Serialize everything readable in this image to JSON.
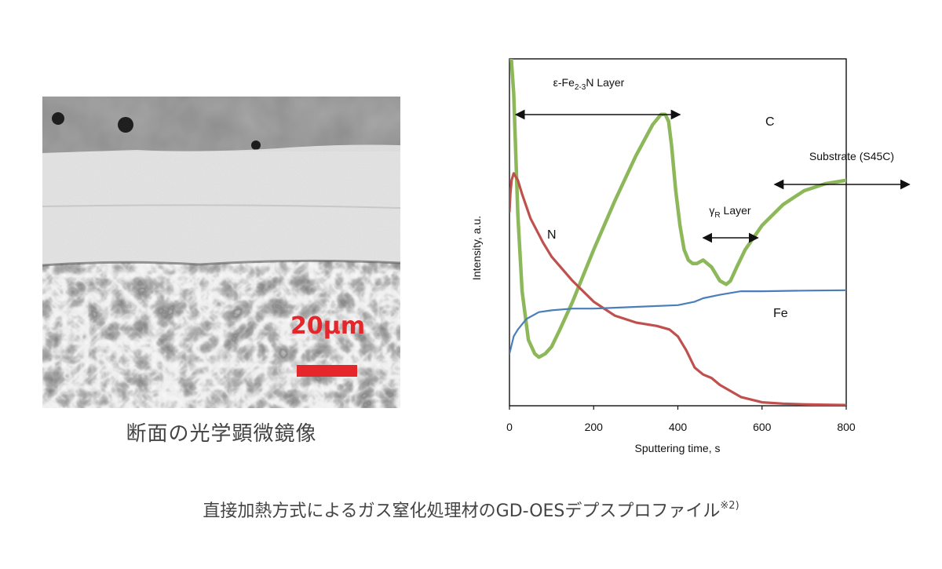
{
  "micrograph": {
    "scale_label": "20μm",
    "caption": "断面の光学顕微鏡像",
    "colors": {
      "scale_bar": "#e5262b"
    }
  },
  "figure_caption": {
    "text": "直接加熱方式によるガス窒化処理材のGD-OESデプスプロファイル",
    "note": "※2)"
  },
  "chart_data": {
    "type": "line",
    "xlabel": "Sputtering time, s",
    "ylabel": "Intensity, a.u.",
    "xlim": [
      0,
      800
    ],
    "ylim": [
      0,
      100
    ],
    "xticks": [
      "0",
      "200",
      "400",
      "600",
      "800"
    ],
    "grid": false,
    "series": [
      {
        "name": "C",
        "color": "#8db85a",
        "x": [
          2,
          10,
          20,
          30,
          45,
          60,
          70,
          85,
          100,
          120,
          150,
          200,
          250,
          300,
          340,
          360,
          370,
          378,
          385,
          395,
          405,
          415,
          425,
          435,
          445,
          460,
          480,
          500,
          515,
          525,
          540,
          560,
          600,
          650,
          700,
          750,
          800
        ],
        "y": [
          104,
          90,
          55,
          33,
          19,
          15,
          14,
          15,
          17,
          22,
          30,
          45,
          59,
          72,
          81,
          84,
          84,
          82,
          75,
          62,
          52,
          45,
          42,
          41,
          41,
          42,
          40,
          36,
          35,
          36,
          40,
          45,
          52,
          58,
          62,
          64,
          65
        ]
      },
      {
        "name": "N",
        "color": "#c0504d",
        "x": [
          0,
          2,
          5,
          10,
          20,
          30,
          50,
          80,
          100,
          150,
          200,
          250,
          300,
          350,
          380,
          400,
          420,
          440,
          460,
          480,
          500,
          550,
          600,
          650,
          700,
          750,
          800
        ],
        "y": [
          56,
          61,
          65,
          67,
          65,
          61,
          54,
          47,
          43,
          36,
          30,
          26,
          24,
          23,
          22,
          20,
          16,
          11,
          9,
          8,
          6,
          2.5,
          1,
          0.6,
          0.4,
          0.3,
          0.2
        ]
      },
      {
        "name": "Fe",
        "color": "#4a7ebb",
        "x": [
          0,
          10,
          20,
          40,
          70,
          100,
          150,
          200,
          300,
          400,
          440,
          460,
          500,
          550,
          600,
          700,
          800
        ],
        "y": [
          15,
          20,
          22,
          25,
          27,
          27.5,
          28,
          28,
          28.5,
          29,
          30,
          31,
          32,
          33,
          33,
          33.2,
          33.3
        ]
      }
    ],
    "annotations": [
      {
        "text": "ε-Fe",
        "sub": "2-3",
        "after": "N Layer",
        "range": [
          15,
          405
        ]
      },
      {
        "text": "γ",
        "sub": "R",
        "after": " Layer",
        "range": [
          460,
          590
        ]
      },
      {
        "text": "Substrate (S45C)",
        "range": [
          630,
          950
        ]
      }
    ],
    "series_labels": [
      "C",
      "N",
      "Fe"
    ]
  }
}
